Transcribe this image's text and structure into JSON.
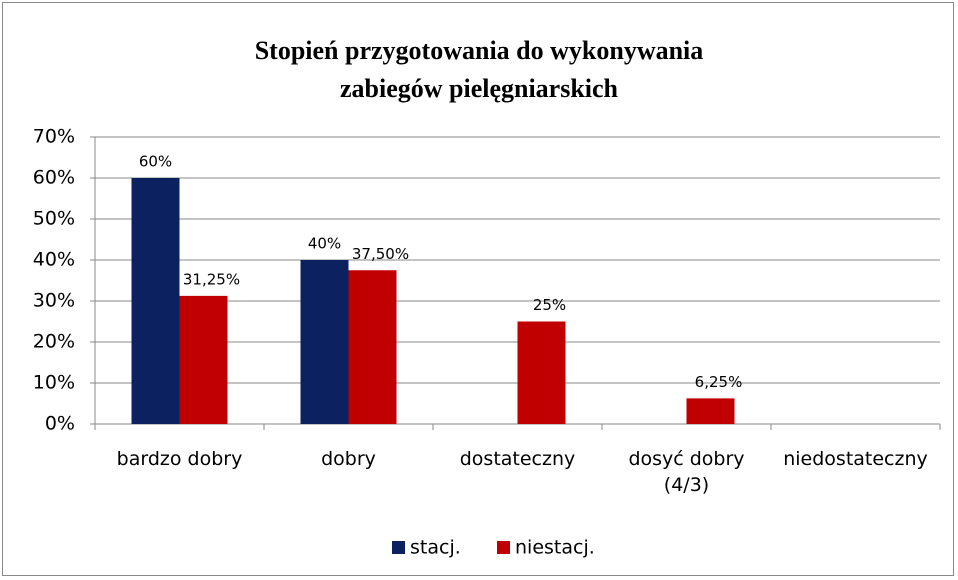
{
  "chart_data": {
    "type": "bar",
    "title": "Stopień przygotowania do wykonywania zabiegów pielęgniarskich",
    "categories": [
      "bardzo dobry",
      "dobry",
      "dostateczny",
      "dosyć dobry (4/3)",
      "niedostateczny"
    ],
    "series": [
      {
        "name": "stacj.",
        "color": "#0c2160",
        "values": [
          60,
          40,
          null,
          null,
          null
        ],
        "value_labels": [
          "60%",
          "40%",
          null,
          null,
          null
        ]
      },
      {
        "name": "niestacj.",
        "color": "#c00000",
        "values": [
          31.25,
          37.5,
          25,
          6.25,
          null
        ],
        "value_labels": [
          "31,25%",
          "37,50%",
          "25%",
          "6,25%",
          null
        ]
      }
    ],
    "ylim": [
      0,
      70
    ],
    "yticks": [
      {
        "value": 0,
        "label": "0%"
      },
      {
        "value": 10,
        "label": "10%"
      },
      {
        "value": 20,
        "label": "20%"
      },
      {
        "value": 30,
        "label": "30%"
      },
      {
        "value": 40,
        "label": "40%"
      },
      {
        "value": 50,
        "label": "50%"
      },
      {
        "value": 60,
        "label": "60%"
      },
      {
        "value": 70,
        "label": "70%"
      }
    ],
    "grid": true,
    "legend": "bottom"
  }
}
